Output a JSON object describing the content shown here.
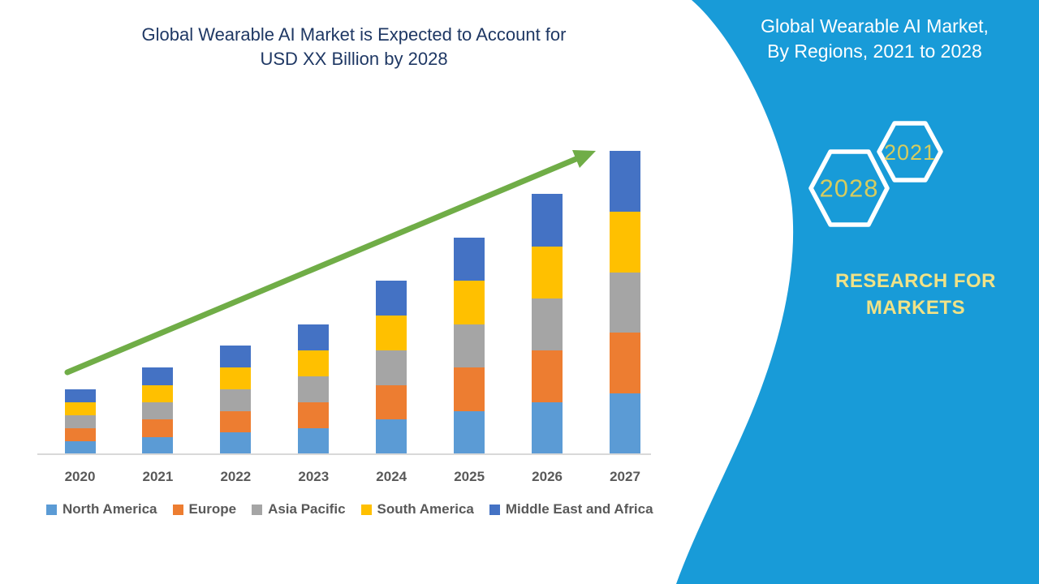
{
  "chart": {
    "title_line1": "Global Wearable AI Market is Expected to Account for",
    "title_line2": "USD XX Billion by 2028",
    "title_color": "#1F3864"
  },
  "chart_data": {
    "type": "bar",
    "stacked": true,
    "title": "Global Wearable AI Market is Expected to Account for USD XX Billion by 2028",
    "xlabel": "",
    "ylabel": "",
    "y_axis_visible": false,
    "gridlines": false,
    "legend_position": "bottom",
    "units_note": "USD Billion shown as XX (values unlabeled, relative units estimated from bar heights)",
    "categories": [
      "2020",
      "2021",
      "2022",
      "2023",
      "2024",
      "2025",
      "2026",
      "2027"
    ],
    "totals": [
      1.5,
      2.0,
      2.5,
      3.0,
      4.0,
      5.0,
      6.0,
      7.0
    ],
    "ylim": [
      0,
      7.4
    ],
    "series": [
      {
        "name": "North America",
        "color": "#5B9BD5",
        "values": [
          0.3,
          0.4,
          0.5,
          0.6,
          0.8,
          1.0,
          1.2,
          1.4
        ]
      },
      {
        "name": "Europe",
        "color": "#ED7D31",
        "values": [
          0.3,
          0.4,
          0.5,
          0.6,
          0.8,
          1.0,
          1.2,
          1.4
        ]
      },
      {
        "name": "Asia Pacific",
        "color": "#A5A5A5",
        "values": [
          0.3,
          0.4,
          0.5,
          0.6,
          0.8,
          1.0,
          1.2,
          1.4
        ]
      },
      {
        "name": "South America",
        "color": "#FFC000",
        "values": [
          0.3,
          0.4,
          0.5,
          0.6,
          0.8,
          1.0,
          1.2,
          1.4
        ]
      },
      {
        "name": "Middle East and Africa",
        "color": "#4472C4",
        "values": [
          0.3,
          0.4,
          0.5,
          0.6,
          0.8,
          1.0,
          1.2,
          1.4
        ]
      }
    ],
    "annotations": [
      "green upward trend arrow from 2020 bar to 2027 bar"
    ],
    "arrow_color": "#70AD47"
  },
  "side_panel": {
    "bg_color": "#189BD8",
    "title_line1": "Global Wearable AI Market,",
    "title_line2": "By Regions, 2021 to 2028",
    "hexagon_back_label": "2028",
    "hexagon_front_label": "2021",
    "hexagon_label_color": "#D6CC5F",
    "brand_line1": "RESEARCH FOR",
    "brand_line2": "MARKETS",
    "brand_color": "#F0E287"
  }
}
